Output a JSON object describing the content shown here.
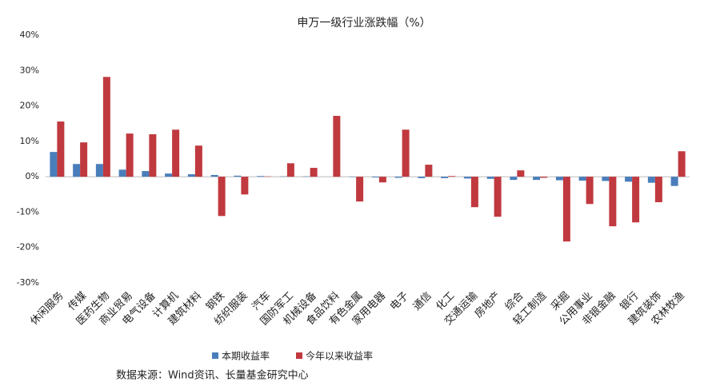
{
  "chart_data": {
    "type": "bar",
    "title": "申万一级行业涨跌幅（%）",
    "categories": [
      "休闲服务",
      "传媒",
      "医药生物",
      "商业贸易",
      "电气设备",
      "计算机",
      "建筑材料",
      "钢铁",
      "纺织服装",
      "汽车",
      "国防军工",
      "机械设备",
      "食品饮料",
      "有色金属",
      "家用电器",
      "电子",
      "通信",
      "化工",
      "交通运输",
      "房地产",
      "综合",
      "轻工制造",
      "采掘",
      "公用事业",
      "非银金融",
      "银行",
      "建筑装饰",
      "农林牧渔"
    ],
    "series": [
      {
        "name": "本期收益率",
        "color": "#4a7ebb",
        "values": [
          7.0,
          3.6,
          3.6,
          2.0,
          1.6,
          0.9,
          0.7,
          0.5,
          0.3,
          0.2,
          0.1,
          0.1,
          0.0,
          -0.1,
          -0.2,
          -0.3,
          -0.4,
          -0.4,
          -0.5,
          -0.6,
          -0.9,
          -0.9,
          -1.0,
          -1.1,
          -1.2,
          -1.4,
          -1.7,
          -2.6
        ]
      },
      {
        "name": "今年以来收益率",
        "color": "#c0393f",
        "values": [
          15.6,
          9.7,
          28.2,
          12.2,
          12.0,
          13.3,
          8.8,
          -11.1,
          -5.0,
          0.1,
          3.8,
          2.5,
          17.2,
          -7.0,
          -1.6,
          13.3,
          3.4,
          0.2,
          -8.6,
          -11.3,
          1.8,
          -0.3,
          -18.3,
          -7.7,
          -14.0,
          -12.9,
          -7.2,
          7.2
        ]
      }
    ],
    "ylim": [
      -30,
      40
    ],
    "yticks": [
      {
        "value": -30,
        "label": "-30%"
      },
      {
        "value": -20,
        "label": "-20%"
      },
      {
        "value": -10,
        "label": "-10%"
      },
      {
        "value": 0,
        "label": "0%"
      },
      {
        "value": 10,
        "label": "10%"
      },
      {
        "value": 20,
        "label": "20%"
      },
      {
        "value": 30,
        "label": "30%"
      },
      {
        "value": 40,
        "label": "40%"
      }
    ],
    "source": "数据来源：Wind资讯、长量基金研究中心"
  }
}
